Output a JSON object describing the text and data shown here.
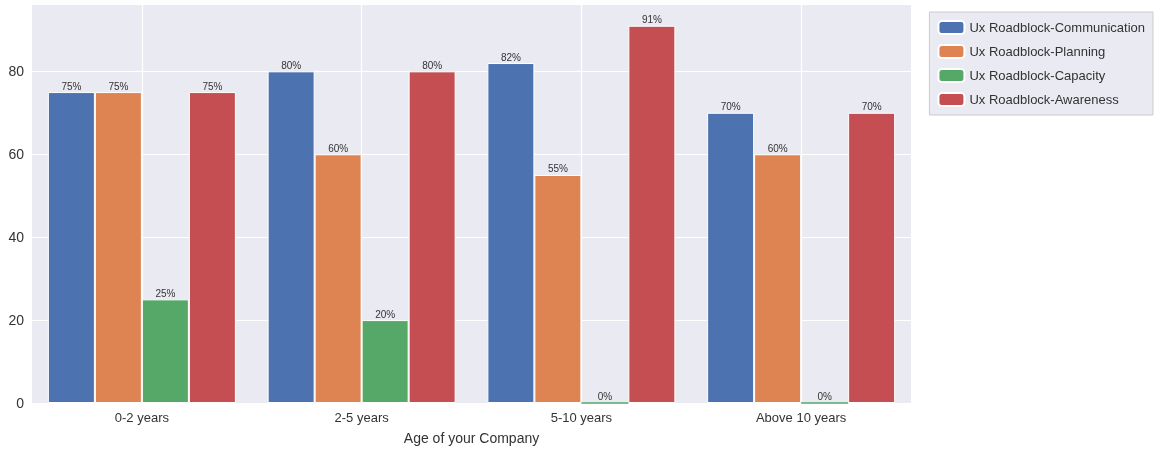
{
  "chart_data": {
    "type": "bar",
    "xlabel": "Age of your Company",
    "categories": [
      "0-2 years",
      "2-5 years",
      "5-10 years",
      "Above 10 years"
    ],
    "series": [
      {
        "name": "Ux Roadblock-Communication",
        "color": "#4c72b0",
        "values": [
          75,
          80,
          82,
          70
        ],
        "value_labels": [
          "75%",
          "80%",
          "82%",
          "70%"
        ]
      },
      {
        "name": "Ux Roadblock-Planning",
        "color": "#dd8452",
        "values": [
          75,
          60,
          55,
          60
        ],
        "value_labels": [
          "75%",
          "60%",
          "55%",
          "60%"
        ]
      },
      {
        "name": "Ux Roadblock-Capacity",
        "color": "#55a868",
        "values": [
          25,
          20,
          0,
          0
        ],
        "value_labels": [
          "25%",
          "20%",
          "0%",
          "0%"
        ]
      },
      {
        "name": "Ux Roadblock-Awareness",
        "color": "#c44e52",
        "values": [
          75,
          80,
          91,
          70
        ],
        "value_labels": [
          "75%",
          "80%",
          "91%",
          "70%"
        ]
      }
    ],
    "ylim": [
      0,
      96
    ],
    "yticks": [
      0,
      20,
      40,
      60,
      80
    ],
    "grid": true,
    "legend": "right"
  }
}
